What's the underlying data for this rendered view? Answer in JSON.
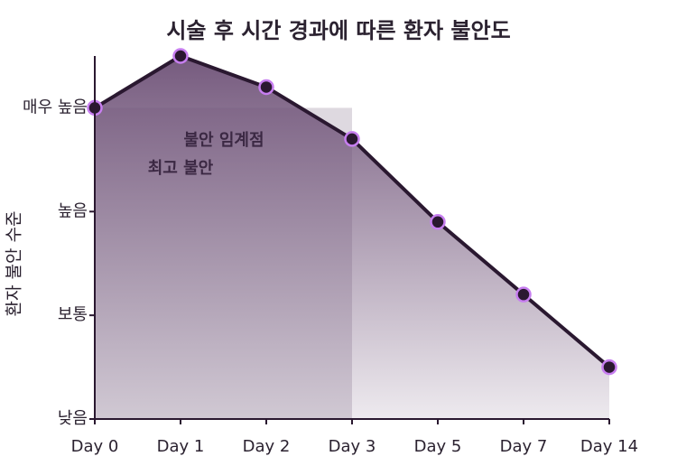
{
  "chart_data": {
    "type": "line",
    "title": "시술 후 시간 경과에 따른 환자 불안도",
    "y_label": "환자 불안 수준",
    "categories": [
      "Day 0",
      "Day 1",
      "Day 2",
      "Day 3",
      "Day 5",
      "Day 7",
      "Day 14"
    ],
    "series": [
      {
        "name": "환자 불안도",
        "color": "#2a1830",
        "values": [
          3,
          3.5,
          3.2,
          2.7,
          1.9,
          1.2,
          0.5
        ]
      }
    ],
    "ylim": [
      0,
      3.5
    ],
    "yticks": [
      {
        "value": 0,
        "label": "낮음"
      },
      {
        "value": 1,
        "label": "보통"
      },
      {
        "value": 2,
        "label": "높음"
      },
      {
        "value": 3,
        "label": "매우 높음"
      }
    ],
    "highlight": {
      "from": "Day 0",
      "to": "Day 3",
      "value": 3
    },
    "annotations": [
      "불안 임계점",
      "최고 불안"
    ]
  }
}
